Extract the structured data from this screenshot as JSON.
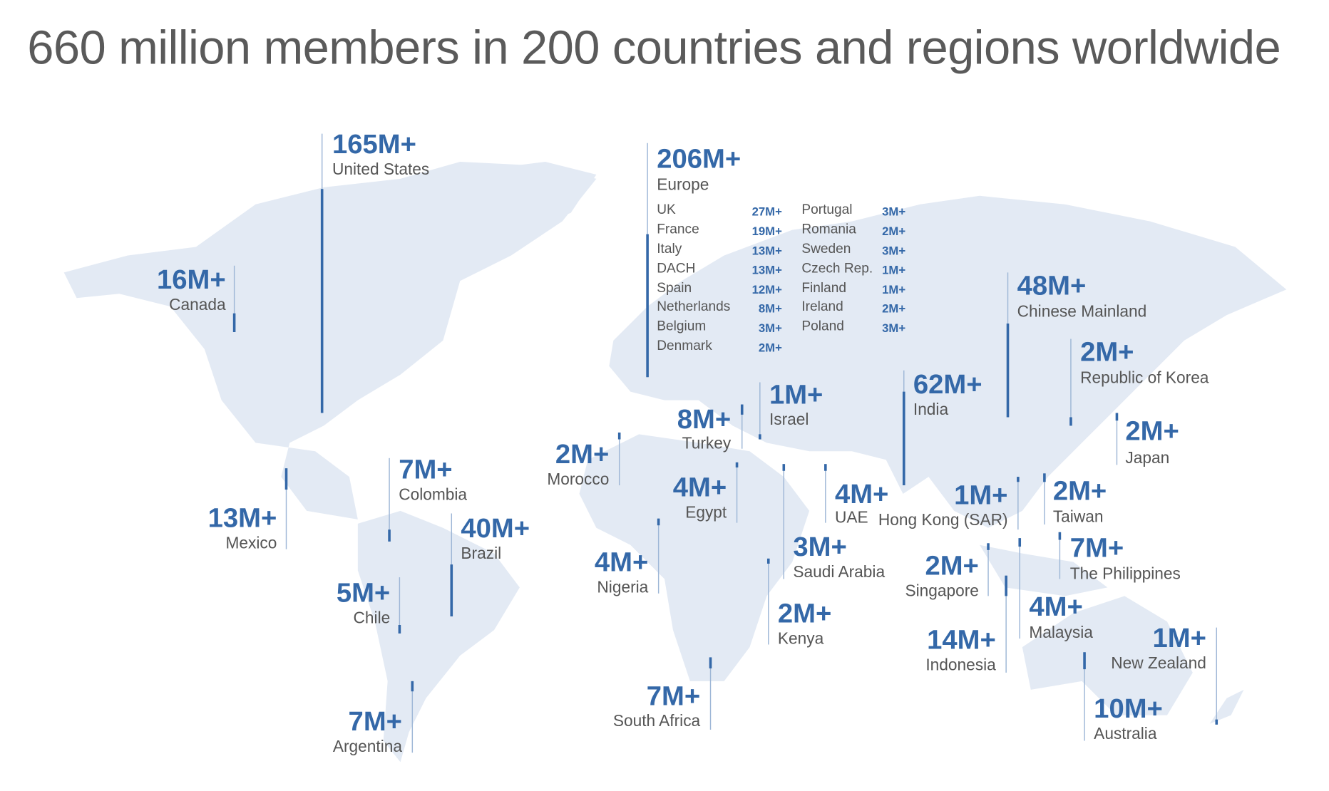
{
  "title": "660 million members in 200 countries and regions worldwide",
  "regions": [
    {
      "value": "165M+",
      "name": "United States"
    },
    {
      "value": "16M+",
      "name": "Canada"
    },
    {
      "value": "13M+",
      "name": "Mexico"
    },
    {
      "value": "7M+",
      "name": "Colombia"
    },
    {
      "value": "40M+",
      "name": "Brazil"
    },
    {
      "value": "5M+",
      "name": "Chile"
    },
    {
      "value": "7M+",
      "name": "Argentina"
    },
    {
      "value": "206M+",
      "name": "Europe"
    },
    {
      "value": "2M+",
      "name": "Morocco"
    },
    {
      "value": "8M+",
      "name": "Turkey"
    },
    {
      "value": "1M+",
      "name": "Israel"
    },
    {
      "value": "4M+",
      "name": "Egypt"
    },
    {
      "value": "4M+",
      "name": "Nigeria"
    },
    {
      "value": "7M+",
      "name": "South Africa"
    },
    {
      "value": "2M+",
      "name": "Kenya"
    },
    {
      "value": "3M+",
      "name": "Saudi Arabia"
    },
    {
      "value": "4M+",
      "name": "UAE"
    },
    {
      "value": "62M+",
      "name": "India"
    },
    {
      "value": "48M+",
      "name": "Chinese Mainland"
    },
    {
      "value": "2M+",
      "name": "Republic of Korea"
    },
    {
      "value": "2M+",
      "name": "Japan"
    },
    {
      "value": "1M+",
      "name": "Hong Kong (SAR)"
    },
    {
      "value": "2M+",
      "name": "Taiwan"
    },
    {
      "value": "2M+",
      "name": "Singapore"
    },
    {
      "value": "7M+",
      "name": "The Philippines"
    },
    {
      "value": "4M+",
      "name": "Malaysia"
    },
    {
      "value": "14M+",
      "name": "Indonesia"
    },
    {
      "value": "1M+",
      "name": "New Zealand"
    },
    {
      "value": "10M+",
      "name": "Australia"
    }
  ],
  "europe_breakdown": [
    {
      "name": "UK",
      "value": "27M+"
    },
    {
      "name": "France",
      "value": "19M+"
    },
    {
      "name": "Italy",
      "value": "13M+"
    },
    {
      "name": "DACH",
      "value": "13M+"
    },
    {
      "name": "Spain",
      "value": "12M+"
    },
    {
      "name": "Netherlands",
      "value": "8M+"
    },
    {
      "name": "Belgium",
      "value": "3M+"
    },
    {
      "name": "Denmark",
      "value": "2M+"
    },
    {
      "name": "Portugal",
      "value": "3M+"
    },
    {
      "name": "Romania",
      "value": "2M+"
    },
    {
      "name": "Sweden",
      "value": "3M+"
    },
    {
      "name": "Czech Rep.",
      "value": "1M+"
    },
    {
      "name": "Finland",
      "value": "1M+"
    },
    {
      "name": "Ireland",
      "value": "2M+"
    },
    {
      "name": "Poland",
      "value": "3M+"
    }
  ]
}
